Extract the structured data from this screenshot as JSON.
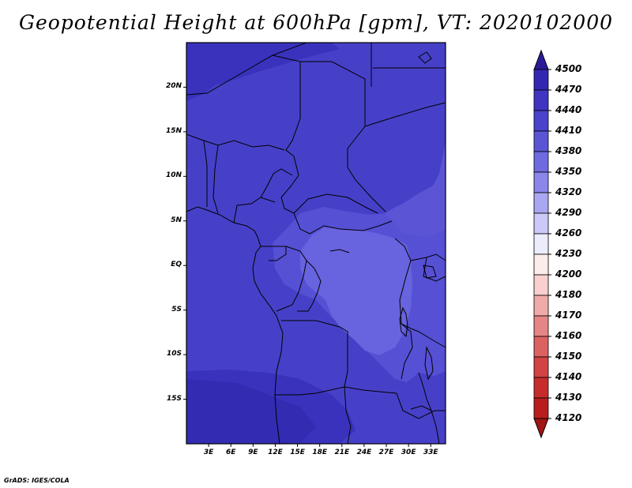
{
  "title": "Geopotential Height at 600hPa [gpm], VT: 2020102000",
  "credit": "GrADS: IGES/COLA",
  "map": {
    "lon_range": [
      0,
      35
    ],
    "lat_range": [
      -20,
      25
    ],
    "y_ticks": [
      "20N",
      "15N",
      "10N",
      "5N",
      "EQ",
      "5S",
      "10S",
      "15S"
    ],
    "y_tick_values": [
      20,
      15,
      10,
      5,
      0,
      -5,
      -10,
      -15
    ],
    "x_ticks": [
      "3E",
      "6E",
      "9E",
      "12E",
      "15E",
      "18E",
      "21E",
      "24E",
      "27E",
      "30E",
      "33E"
    ],
    "x_tick_values": [
      3,
      6,
      9,
      12,
      15,
      18,
      21,
      24,
      27,
      30,
      33
    ]
  },
  "colorbar": {
    "levels": [
      "4500",
      "4470",
      "4440",
      "4410",
      "4380",
      "4350",
      "4320",
      "4290",
      "4260",
      "4230",
      "4200",
      "4180",
      "4170",
      "4160",
      "4150",
      "4140",
      "4130",
      "4120"
    ],
    "colors": [
      "#2a1a98",
      "#3327b2",
      "#3f35c2",
      "#4a43cc",
      "#5b55d6",
      "#6e6ae0",
      "#8a86ea",
      "#a9a6f2",
      "#cac9f8",
      "#ececfc",
      "#fdecec",
      "#f9cfcf",
      "#f1aaaa",
      "#e68585",
      "#dc6262",
      "#d24343",
      "#c72c2c",
      "#b81e1e",
      "#a01515"
    ]
  }
}
